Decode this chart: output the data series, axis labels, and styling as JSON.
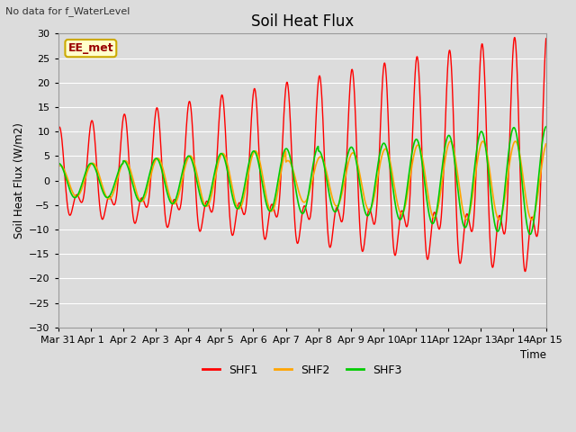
{
  "title": "Soil Heat Flux",
  "top_left_text": "No data for f_WaterLevel",
  "legend_box_label": "EE_met",
  "ylabel": "Soil Heat Flux (W/m2)",
  "xlabel": "Time",
  "ylim": [
    -30,
    30
  ],
  "shf1_color": "#ff0000",
  "shf2_color": "#ffa500",
  "shf3_color": "#00cc00",
  "tick_labels": [
    "Mar 31",
    "Apr 1",
    "Apr 2",
    "Apr 3",
    "Apr 4",
    "Apr 5",
    "Apr 6",
    "Apr 7",
    "Apr 8",
    "Apr 9",
    "Apr 10",
    "Apr 11",
    "Apr 12",
    "Apr 13",
    "Apr 14",
    "Apr 15"
  ],
  "n_days": 15.0,
  "n_points": 1440
}
